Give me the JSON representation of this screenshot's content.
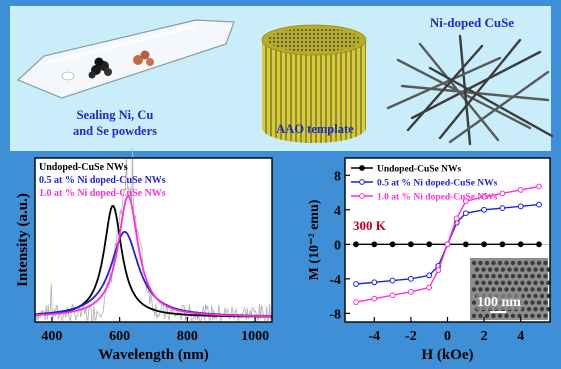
{
  "top_panel": {
    "sealing_label": [
      "Sealing Ni, Cu",
      "and Se powders"
    ],
    "aao_label": "AAO template",
    "ni_doped_label": "Ni-doped CuSe"
  },
  "colors": {
    "background": "#3f8fd6",
    "top_panel": "#c9eefa",
    "undoped": "#000000",
    "doped_05": "#1f1fe0",
    "doped_10": "#ff2fd6",
    "raw_spectrum": "#b5b5b5"
  },
  "chart_data": [
    {
      "type": "line",
      "xlabel": "Wavelength (nm)",
      "ylabel": "Intensity (a.u.)",
      "xlim": [
        350,
        1050
      ],
      "xticks": [
        400,
        600,
        800,
        1000
      ],
      "yticks_shown": false,
      "legend": "top-left",
      "series": [
        {
          "name": "Undoped-CuSe NWs",
          "color": "#000000",
          "peak_x": 580,
          "peak_height": 0.68,
          "width": 32
        },
        {
          "name": "0.5 at % Ni doped-CuSe NWs",
          "color": "#1f1fe0",
          "peak_x": 615,
          "peak_height": 0.52,
          "width": 50
        },
        {
          "name": "1.0 at % Ni doped-CuSe NWs",
          "color": "#ff2fd6",
          "peak_x": 625,
          "peak_height": 0.74,
          "width": 36
        }
      ]
    },
    {
      "type": "line",
      "xlabel": "H (kOe)",
      "ylabel": "M (10⁻² emu)",
      "xlim": [
        -5.6,
        5.6
      ],
      "ylim": [
        -9,
        10
      ],
      "xticks": [
        -4,
        -2,
        0,
        2,
        4
      ],
      "yticks": [
        -8,
        -4,
        0,
        4,
        8
      ],
      "legend": "top-left",
      "annotation": "300 K",
      "inset_label": "100 nm",
      "series": [
        {
          "name": "Undoped-CuSe NWs",
          "color": "#000000",
          "marker": "filled-circle",
          "x": [
            -5,
            -4,
            -3,
            -2,
            -1,
            0,
            1,
            2,
            3,
            4,
            5
          ],
          "y": [
            0,
            0,
            0,
            0,
            0,
            0,
            0,
            0,
            0,
            0,
            0
          ]
        },
        {
          "name": "0.5 at % Ni doped-CuSe NWs",
          "color": "#1f1fe0",
          "marker": "open-circle",
          "x": [
            -5,
            -4,
            -3,
            -2,
            -1,
            -0.5,
            0,
            0.5,
            1,
            2,
            3,
            4,
            5
          ],
          "y": [
            -4.6,
            -4.4,
            -4.2,
            -4.0,
            -3.6,
            -2.5,
            0,
            2.5,
            3.6,
            4.0,
            4.2,
            4.4,
            4.6
          ]
        },
        {
          "name": "1.0 at % Ni doped-CuSe NWs",
          "color": "#ff2fd6",
          "marker": "open-circle",
          "x": [
            -5,
            -4,
            -3,
            -2,
            -1,
            -0.5,
            0,
            0.5,
            1,
            2,
            3,
            4,
            5
          ],
          "y": [
            -6.7,
            -6.3,
            -5.9,
            -5.5,
            -5.0,
            -3.0,
            0,
            3.0,
            5.0,
            5.5,
            5.9,
            6.3,
            6.7
          ]
        }
      ]
    }
  ]
}
